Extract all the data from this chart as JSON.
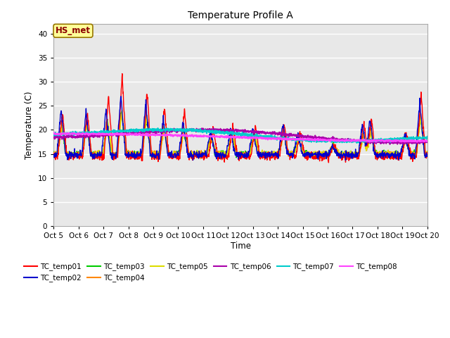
{
  "title": "Temperature Profile A",
  "xlabel": "Time",
  "ylabel": "Temperature (C)",
  "ylim": [
    0,
    42
  ],
  "yticks": [
    0,
    5,
    10,
    15,
    20,
    25,
    30,
    35,
    40
  ],
  "xtick_labels": [
    "Oct 5",
    "Oct 6",
    "Oct 7",
    "Oct 8",
    "Oct 9",
    "Oct 10",
    "Oct 11",
    "Oct 12",
    "Oct 13",
    "Oct 14",
    "Oct 15",
    "Oct 16",
    "Oct 17",
    "Oct 18",
    "Oct 19",
    "Oct 20"
  ],
  "annotation_text": "HS_met",
  "annotation_color": "#8B0000",
  "annotation_bg": "#FFFF99",
  "series_colors": {
    "TC_temp01": "#FF0000",
    "TC_temp02": "#0000CC",
    "TC_temp03": "#00CC00",
    "TC_temp04": "#FF8800",
    "TC_temp05": "#DDDD00",
    "TC_temp06": "#AA00AA",
    "TC_temp07": "#00CCCC",
    "TC_temp08": "#FF44FF"
  },
  "background_color": "#E8E8E8",
  "grid_color": "#FFFFFF",
  "n_points": 1500
}
